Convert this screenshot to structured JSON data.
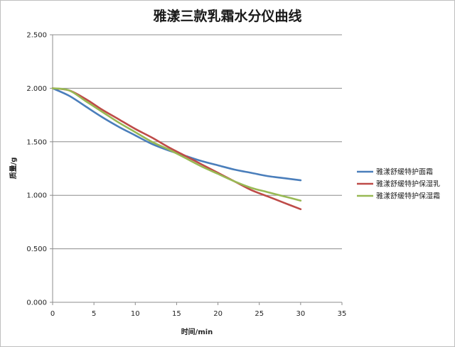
{
  "chart_data": {
    "type": "line",
    "title": "雅漾三款乳霜水分仪曲线",
    "xlabel": "时间/min",
    "ylabel": "质量/g",
    "xlim": [
      0,
      35
    ],
    "ylim": [
      0,
      2.5
    ],
    "x_ticks": [
      "0",
      "5",
      "10",
      "15",
      "20",
      "25",
      "30",
      "35"
    ],
    "y_ticks": [
      "0.000",
      "0.500",
      "1.000",
      "1.500",
      "2.000",
      "2.500"
    ],
    "grid": "horizontal",
    "legend_position": "right",
    "series": [
      {
        "name": "雅漾舒缓特护面霜",
        "color": "#4a7ebb",
        "x": [
          0,
          2,
          4,
          6,
          8,
          10,
          12,
          14,
          16,
          18,
          20,
          22,
          24,
          26,
          28,
          30
        ],
        "y": [
          2.0,
          1.93,
          1.83,
          1.73,
          1.64,
          1.56,
          1.48,
          1.42,
          1.37,
          1.32,
          1.28,
          1.24,
          1.21,
          1.18,
          1.16,
          1.14
        ]
      },
      {
        "name": "雅漾舒缓特护保湿乳",
        "color": "#be4b48",
        "x": [
          0,
          2,
          4,
          6,
          8,
          10,
          12,
          14,
          16,
          18,
          20,
          22,
          24,
          26,
          28,
          30
        ],
        "y": [
          2.0,
          1.98,
          1.9,
          1.8,
          1.71,
          1.62,
          1.54,
          1.45,
          1.37,
          1.29,
          1.21,
          1.13,
          1.05,
          0.99,
          0.93,
          0.87
        ]
      },
      {
        "name": "雅漾舒缓特护保湿霜",
        "color": "#98b954",
        "x": [
          0,
          2,
          4,
          6,
          8,
          10,
          12,
          14,
          16,
          18,
          20,
          22,
          24,
          26,
          28,
          30
        ],
        "y": [
          2.0,
          1.98,
          1.88,
          1.78,
          1.68,
          1.59,
          1.5,
          1.43,
          1.35,
          1.27,
          1.2,
          1.13,
          1.07,
          1.03,
          0.99,
          0.95
        ]
      }
    ]
  }
}
